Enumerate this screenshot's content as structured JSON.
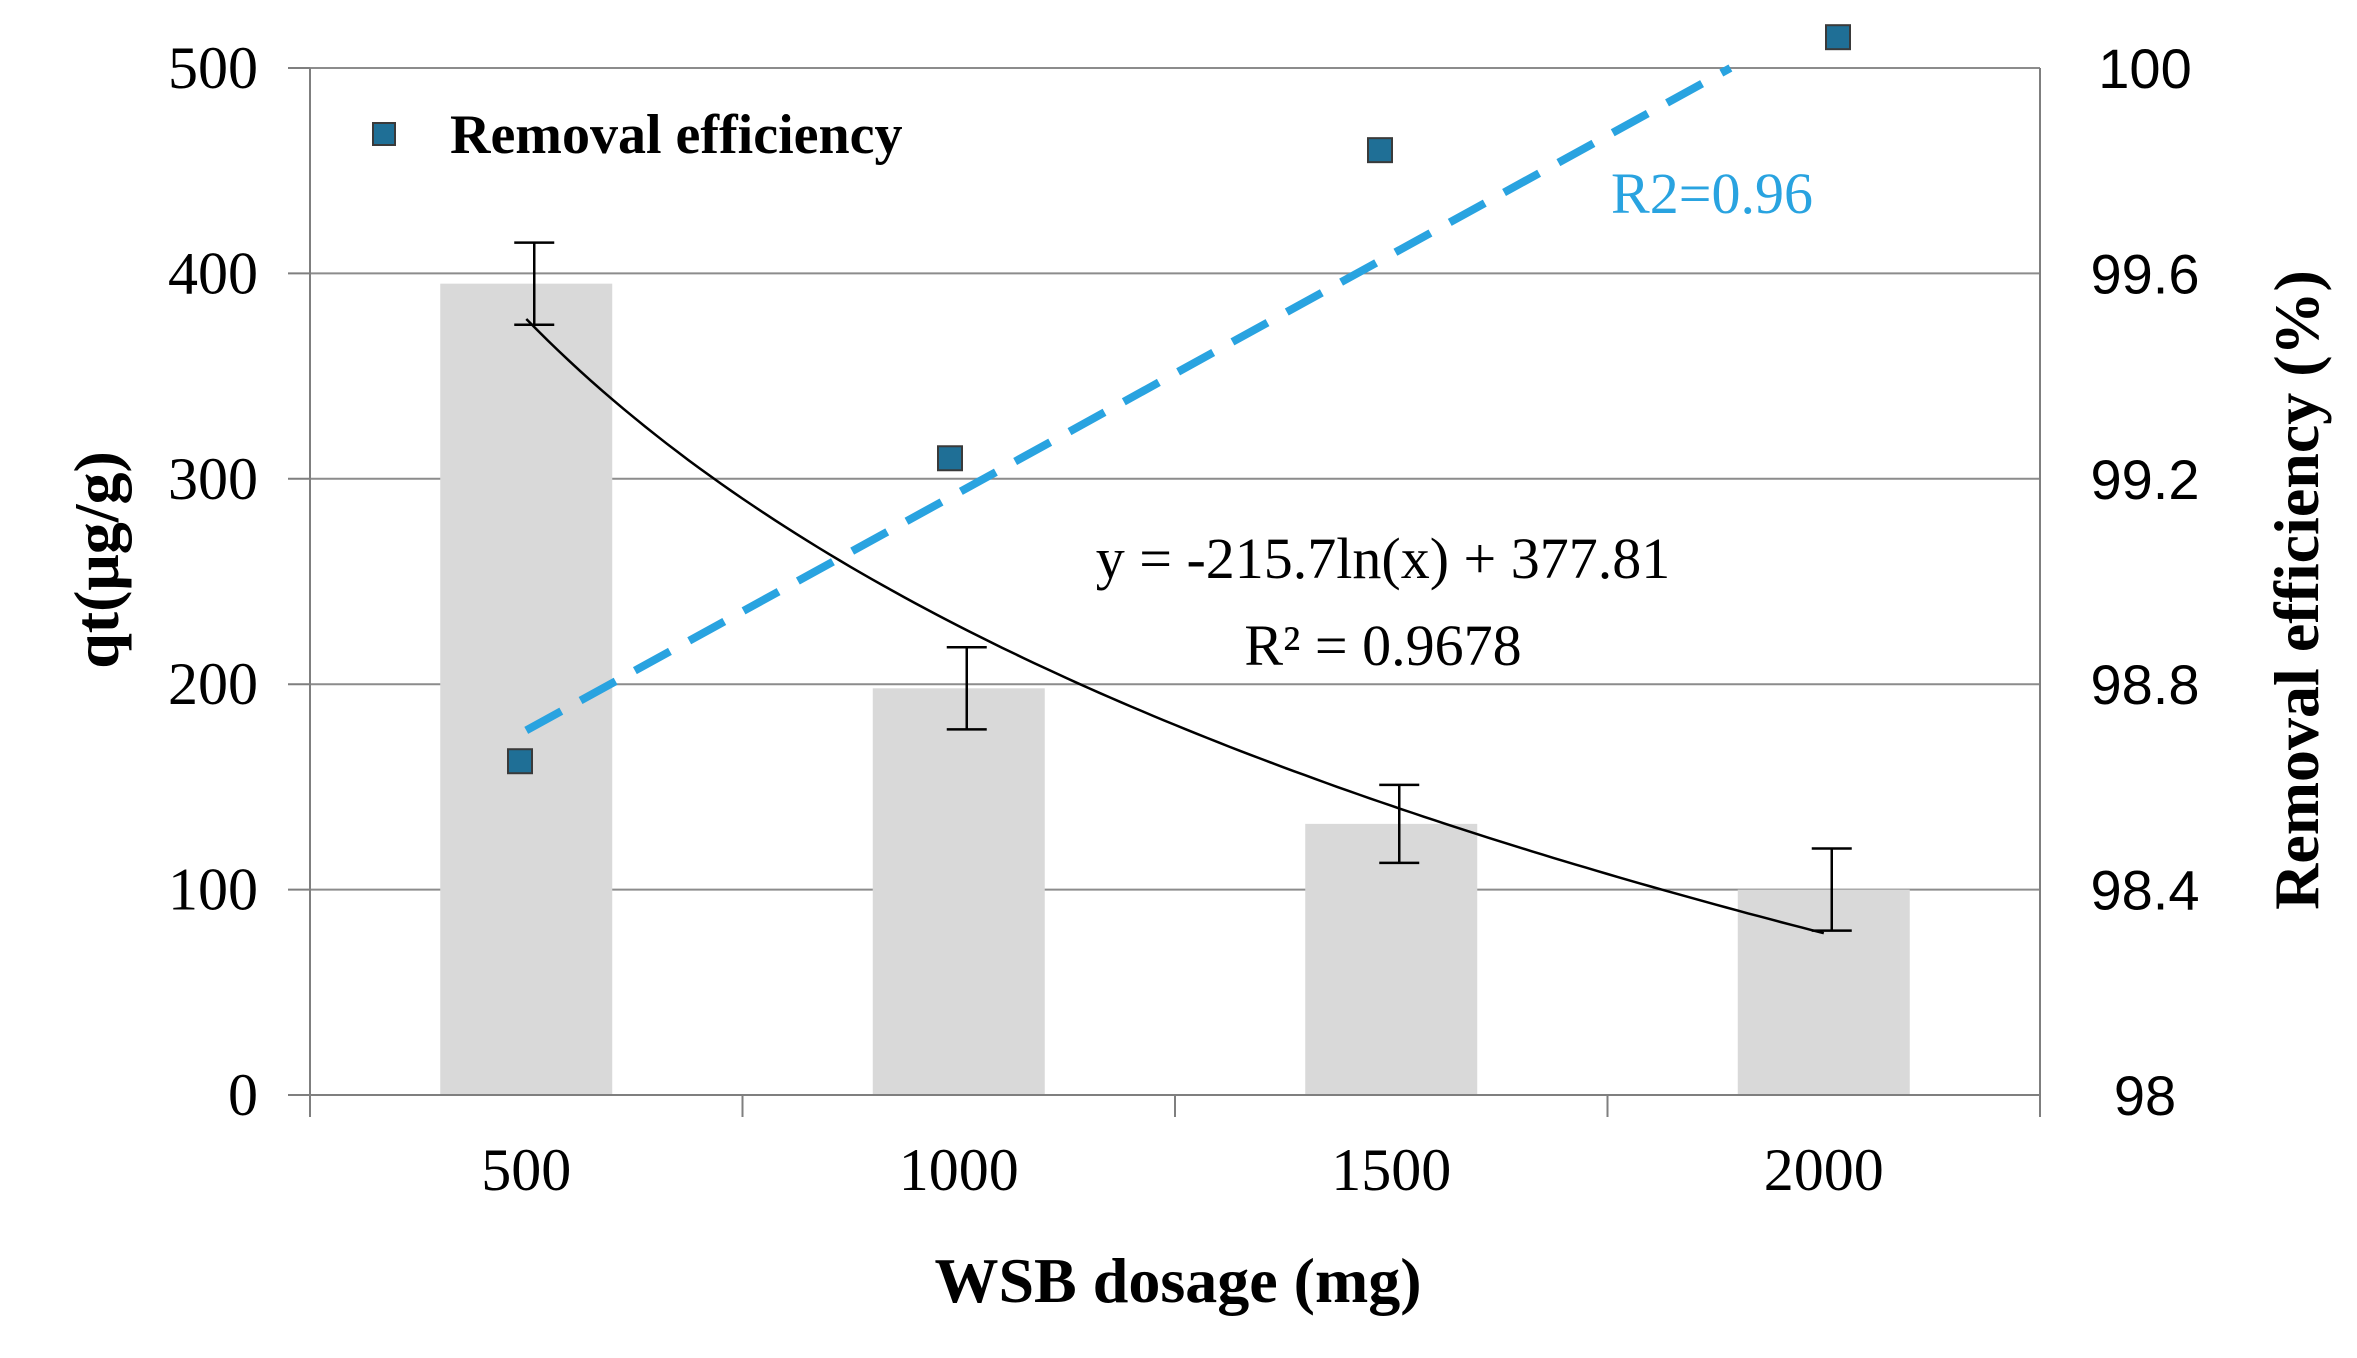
{
  "chart_data": {
    "type": "bar",
    "xlabel": "WSB dosage (mg)",
    "ylabel_left": "qt(μg/g)",
    "ylabel_right": "Removal efficiency (%)",
    "categories": [
      "500",
      "1000",
      "1500",
      "2000"
    ],
    "x_values": [
      500,
      1000,
      1500,
      2000
    ],
    "ylim_left": [
      0,
      500
    ],
    "left_ticks": [
      "0",
      "100",
      "200",
      "300",
      "400",
      "500"
    ],
    "ylim_right": [
      98,
      100
    ],
    "right_ticks": [
      "98",
      "98.4",
      "98.8",
      "99.2",
      "99.6",
      "100"
    ],
    "grid": true,
    "series": [
      {
        "name": "qt",
        "kind": "bar",
        "axis": "left",
        "values": [
          395,
          198,
          132,
          100
        ],
        "error": [
          20,
          20,
          19,
          20
        ],
        "color": "#d9d9d9"
      },
      {
        "name": "Removal efficiency",
        "kind": "scatter",
        "axis": "right",
        "values": [
          98.65,
          99.24,
          99.84,
          100.06
        ],
        "color": "#1f6f96"
      }
    ],
    "trendlines": [
      {
        "series": "qt",
        "type": "log",
        "equation": "y = -215.7ln(x) + 377.81",
        "r2_label": "R² = 0.9678",
        "a": -215.7,
        "b": 377.81,
        "color": "#000000"
      },
      {
        "series": "Removal efficiency",
        "type": "linear",
        "r2_label": "R2=0.96",
        "start": 98.71,
        "end": 100.1,
        "color": "#29a3e0"
      }
    ],
    "legend": {
      "label": "Removal efficiency",
      "position": "top-left"
    }
  }
}
